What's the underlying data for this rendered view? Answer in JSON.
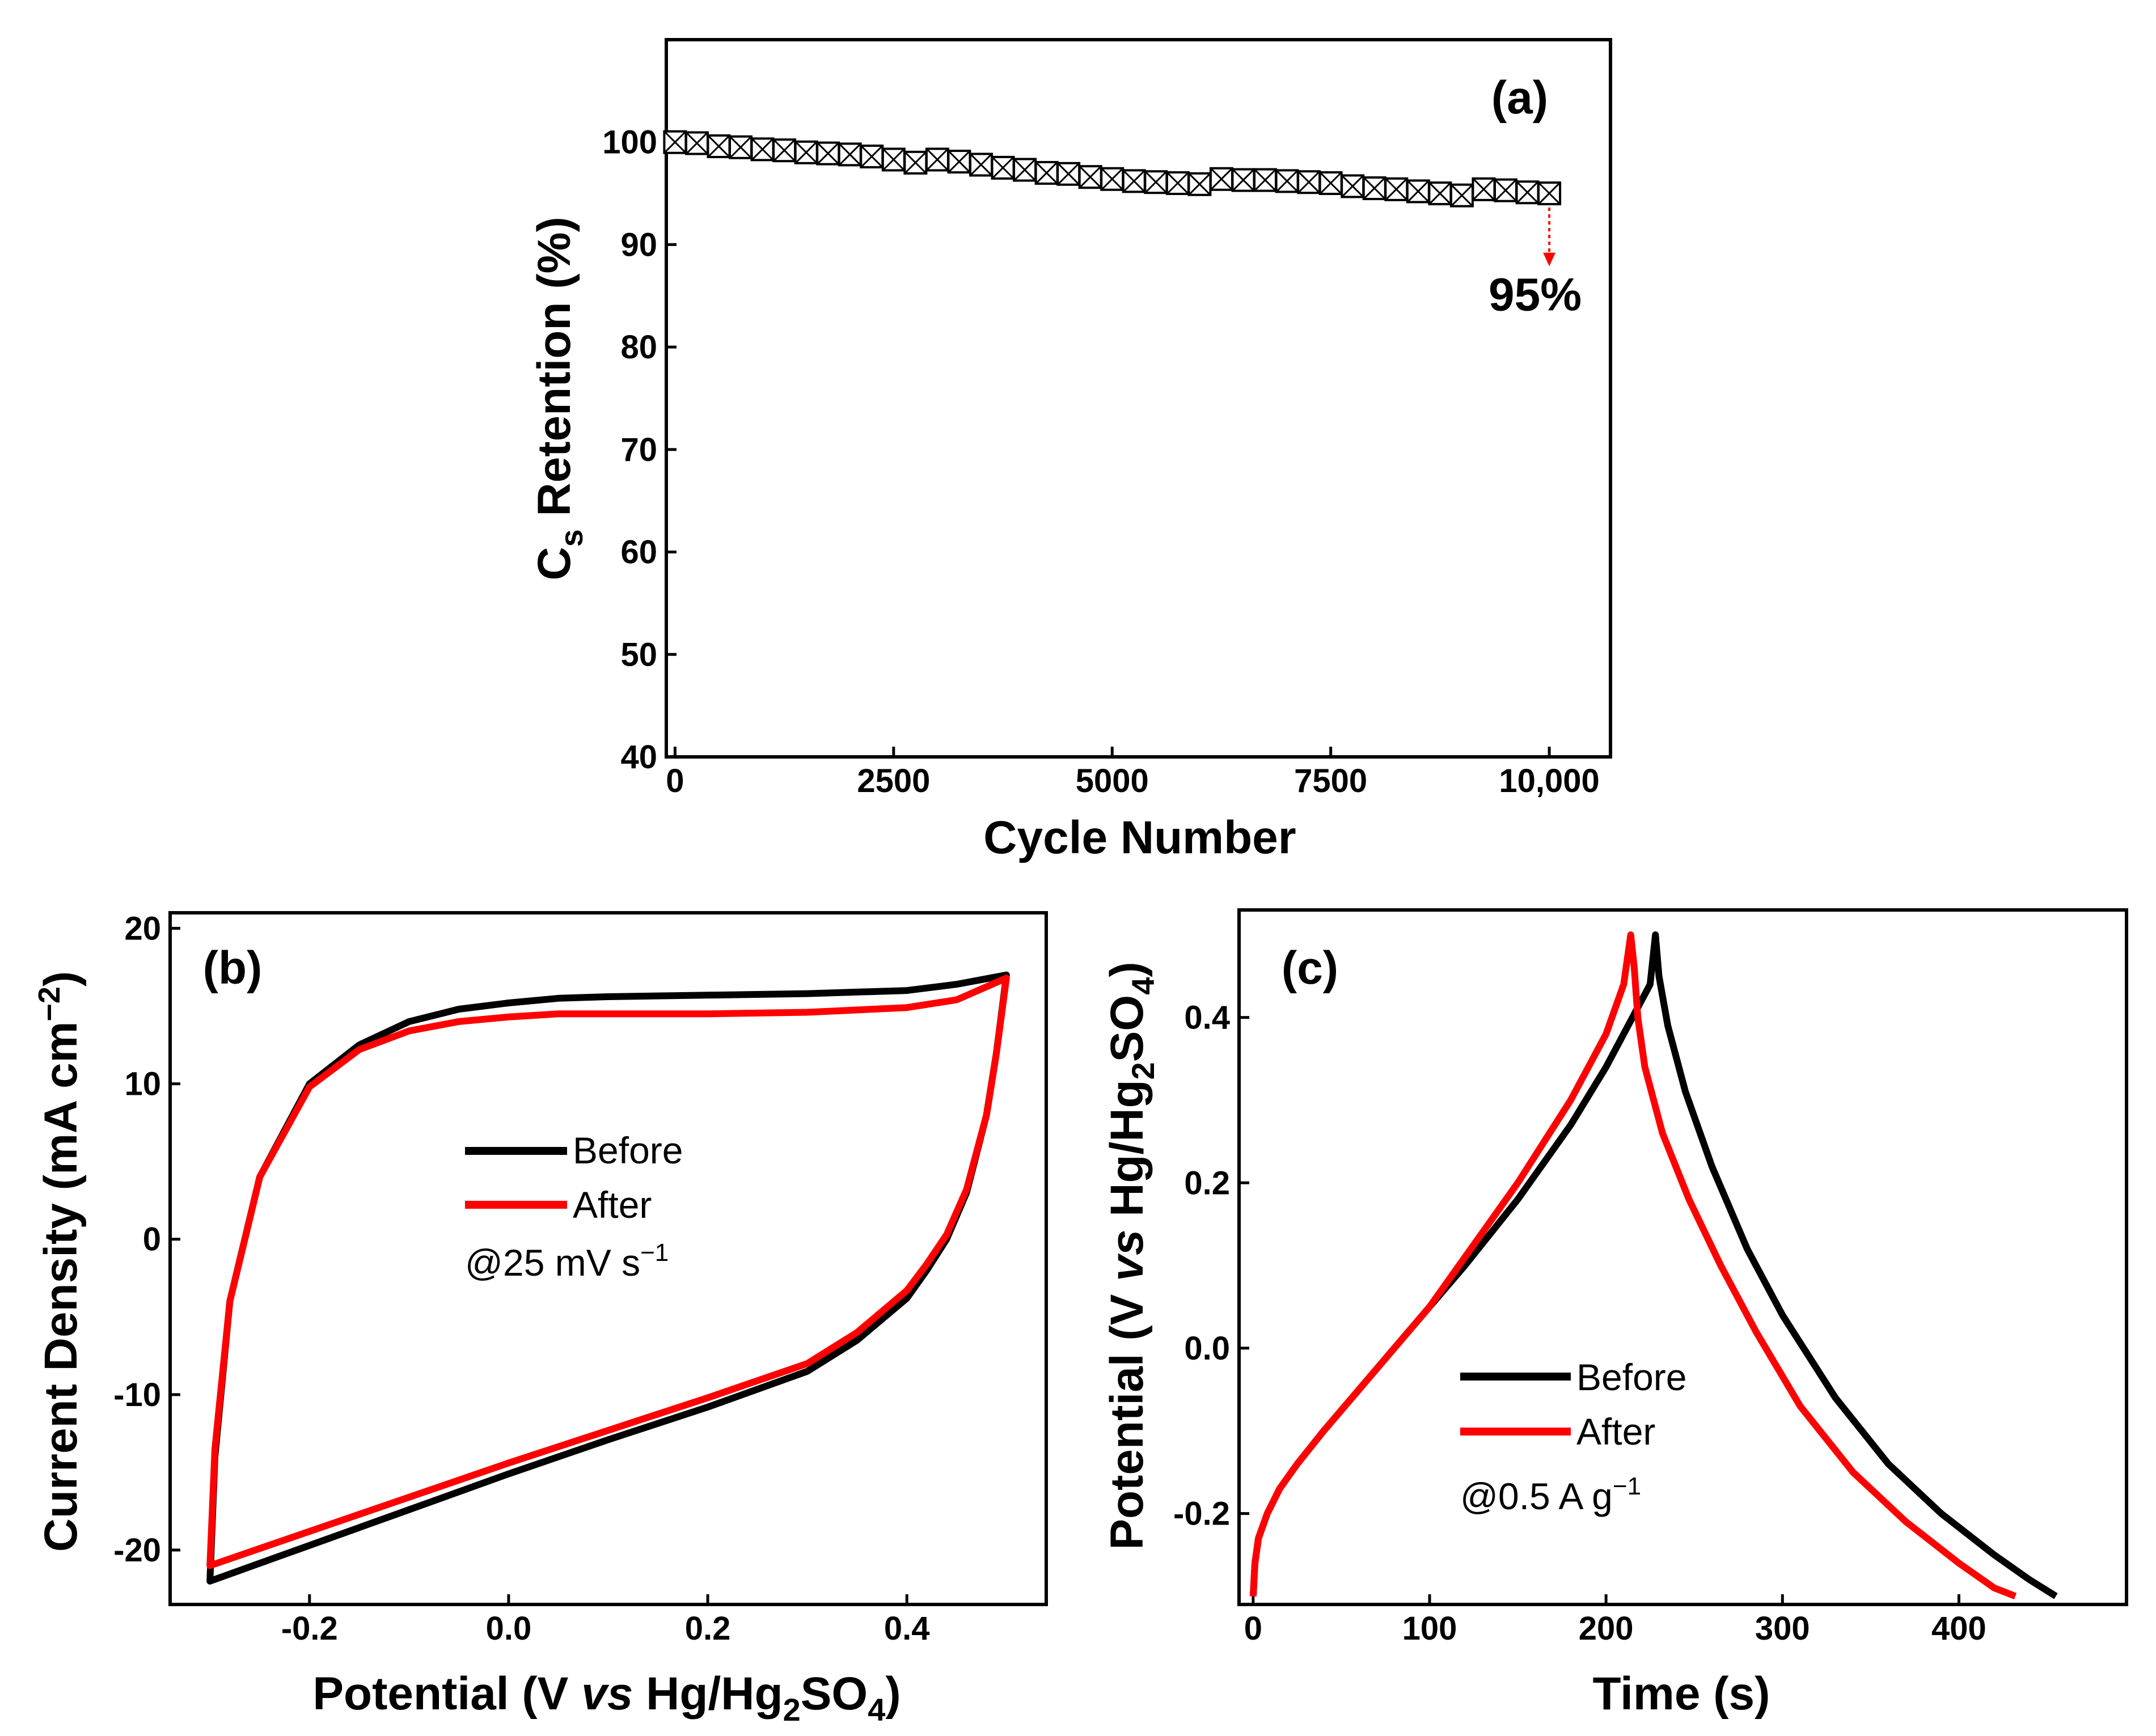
{
  "chart_data": [
    {
      "panel": "(a)",
      "type": "scatter",
      "xlabel": "Cycle Number",
      "ylabel_main": "C",
      "ylabel_sub": "s",
      "ylabel_rest": " Retention (%)",
      "xlim": [
        -100,
        10700
      ],
      "ylim": [
        40,
        110
      ],
      "xticks": [
        0,
        2500,
        5000,
        7500,
        10000
      ],
      "xtick_labels": [
        "0",
        "2500",
        "5000",
        "7500",
        "10,000"
      ],
      "yticks": [
        40,
        50,
        60,
        70,
        80,
        90,
        100
      ],
      "ytick_labels": [
        "40",
        "50",
        "60",
        "70",
        "80",
        "90",
        "100"
      ],
      "annotation": "95%",
      "annotation_color": "#2e8b1e",
      "arrow_color": "#ff0000",
      "annotation_at": {
        "x": 10000,
        "y_from": 95,
        "y_to": 88
      },
      "series": [
        {
          "name": "Retention",
          "marker": "square-x",
          "color": "#000000",
          "x": [
            0,
            250,
            500,
            750,
            1000,
            1250,
            1500,
            1750,
            2000,
            2250,
            2500,
            2750,
            3000,
            3250,
            3500,
            3750,
            4000,
            4250,
            4500,
            4750,
            5000,
            5250,
            5500,
            5750,
            6000,
            6250,
            6500,
            6750,
            7000,
            7250,
            7500,
            7750,
            8000,
            8250,
            8500,
            8750,
            9000,
            9250,
            9500,
            9750,
            10000
          ],
          "y": [
            100,
            99.9,
            99.6,
            99.5,
            99.3,
            99.2,
            99.0,
            98.9,
            98.8,
            98.6,
            98.3,
            98.0,
            98.3,
            98.1,
            97.8,
            97.5,
            97.3,
            97.0,
            96.9,
            96.6,
            96.4,
            96.2,
            96.1,
            96.0,
            95.9,
            96.4,
            96.3,
            96.3,
            96.2,
            96.1,
            96.0,
            95.7,
            95.5,
            95.4,
            95.2,
            95.0,
            94.8,
            95.4,
            95.3,
            95.1,
            95.0
          ]
        }
      ]
    },
    {
      "panel": "(b)",
      "type": "line",
      "xlabel_pre": "Potential (V ",
      "xlabel_ital": "vs",
      "xlabel_mid": " Hg/Hg",
      "xlabel_sub1": "2",
      "xlabel_mid2": "SO",
      "xlabel_sub2": "4",
      "xlabel_post": ")",
      "ylabel": "Current Density (mA cm",
      "ylabel_sup": "−2",
      "ylabel_post": ")",
      "xlim": [
        -0.34,
        0.54
      ],
      "ylim": [
        -23.5,
        21
      ],
      "xticks": [
        -0.2,
        0.0,
        0.2,
        0.4
      ],
      "xtick_labels": [
        "-0.2",
        "0.0",
        "0.2",
        "0.4"
      ],
      "yticks": [
        -20,
        -10,
        0,
        10,
        20
      ],
      "ytick_labels": [
        "-20",
        "-10",
        "0",
        "10",
        "20"
      ],
      "legend_text": "@25 mV s",
      "legend_sup": "−1",
      "series": [
        {
          "name": "Before",
          "color": "#000000",
          "upper": {
            "x": [
              -0.3,
              -0.295,
              -0.28,
              -0.25,
              -0.2,
              -0.15,
              -0.1,
              -0.05,
              0.0,
              0.05,
              0.1,
              0.2,
              0.3,
              0.4,
              0.45,
              0.5
            ],
            "y": [
              -22,
              -14,
              -4,
              4,
              10,
              12.5,
              14.0,
              14.8,
              15.2,
              15.5,
              15.6,
              15.7,
              15.8,
              16.0,
              16.4,
              17.0
            ]
          },
          "lower": {
            "x": [
              0.5,
              0.49,
              0.48,
              0.46,
              0.44,
              0.42,
              0.4,
              0.35,
              0.3,
              0.2,
              0.1,
              0.0,
              -0.1,
              -0.2,
              -0.3
            ],
            "y": [
              17.0,
              12,
              8,
              3,
              0,
              -2,
              -3.8,
              -6.5,
              -8.5,
              -10.8,
              -12.9,
              -15.1,
              -17.4,
              -19.7,
              -22.0
            ]
          }
        },
        {
          "name": "After",
          "color": "#ff0000",
          "upper": {
            "x": [
              -0.3,
              -0.295,
              -0.28,
              -0.25,
              -0.2,
              -0.15,
              -0.1,
              -0.05,
              0.0,
              0.05,
              0.1,
              0.2,
              0.3,
              0.4,
              0.45,
              0.5
            ],
            "y": [
              -21,
              -13.5,
              -4,
              4,
              9.8,
              12.2,
              13.4,
              14.0,
              14.3,
              14.5,
              14.5,
              14.5,
              14.6,
              14.9,
              15.4,
              16.8
            ]
          },
          "lower": {
            "x": [
              0.5,
              0.49,
              0.48,
              0.46,
              0.44,
              0.42,
              0.4,
              0.35,
              0.3,
              0.2,
              0.1,
              0.0,
              -0.1,
              -0.2,
              -0.3
            ],
            "y": [
              16.8,
              12,
              8,
              3.2,
              0.3,
              -1.6,
              -3.3,
              -6.0,
              -8.0,
              -10.2,
              -12.3,
              -14.4,
              -16.6,
              -18.8,
              -21.0
            ]
          }
        }
      ]
    },
    {
      "panel": "(c)",
      "type": "line",
      "xlabel": "Time (s)",
      "ylabel_pre": "Potential (V ",
      "ylabel_ital": "vs",
      "ylabel_mid": " Hg/Hg",
      "ylabel_sub1": "2",
      "ylabel_mid2": "SO",
      "ylabel_sub2": "4",
      "ylabel_post": ")",
      "xlim": [
        -8,
        495
      ],
      "ylim": [
        -0.31,
        0.53
      ],
      "xticks": [
        0,
        100,
        200,
        300,
        400
      ],
      "xtick_labels": [
        "0",
        "100",
        "200",
        "300",
        "400"
      ],
      "yticks": [
        -0.2,
        0.0,
        0.2,
        0.4
      ],
      "ytick_labels": [
        "-0.2",
        "0.0",
        "0.2",
        "0.4"
      ],
      "legend_text": "@0.5 A g",
      "legend_sup": "−1",
      "series": [
        {
          "name": "Before",
          "color": "#000000",
          "x": [
            0,
            1,
            3,
            8,
            15,
            25,
            40,
            60,
            80,
            100,
            120,
            150,
            180,
            200,
            215,
            225,
            228,
            230,
            235,
            245,
            260,
            280,
            300,
            330,
            360,
            390,
            420,
            440,
            455
          ],
          "y": [
            -0.3,
            -0.26,
            -0.23,
            -0.2,
            -0.17,
            -0.14,
            -0.1,
            -0.05,
            0.0,
            0.05,
            0.1,
            0.18,
            0.27,
            0.34,
            0.4,
            0.44,
            0.5,
            0.45,
            0.39,
            0.31,
            0.22,
            0.12,
            0.04,
            -0.06,
            -0.14,
            -0.2,
            -0.25,
            -0.28,
            -0.3
          ]
        },
        {
          "name": "After",
          "color": "#ff0000",
          "x": [
            0,
            1,
            3,
            8,
            15,
            25,
            40,
            60,
            80,
            100,
            120,
            150,
            180,
            200,
            210,
            214,
            216,
            218,
            222,
            232,
            247,
            265,
            285,
            310,
            340,
            370,
            400,
            420,
            432
          ],
          "y": [
            -0.3,
            -0.26,
            -0.23,
            -0.2,
            -0.17,
            -0.14,
            -0.1,
            -0.05,
            0.0,
            0.05,
            0.11,
            0.2,
            0.3,
            0.38,
            0.44,
            0.5,
            0.46,
            0.4,
            0.34,
            0.26,
            0.18,
            0.1,
            0.02,
            -0.07,
            -0.15,
            -0.21,
            -0.26,
            -0.29,
            -0.3
          ]
        }
      ]
    }
  ]
}
